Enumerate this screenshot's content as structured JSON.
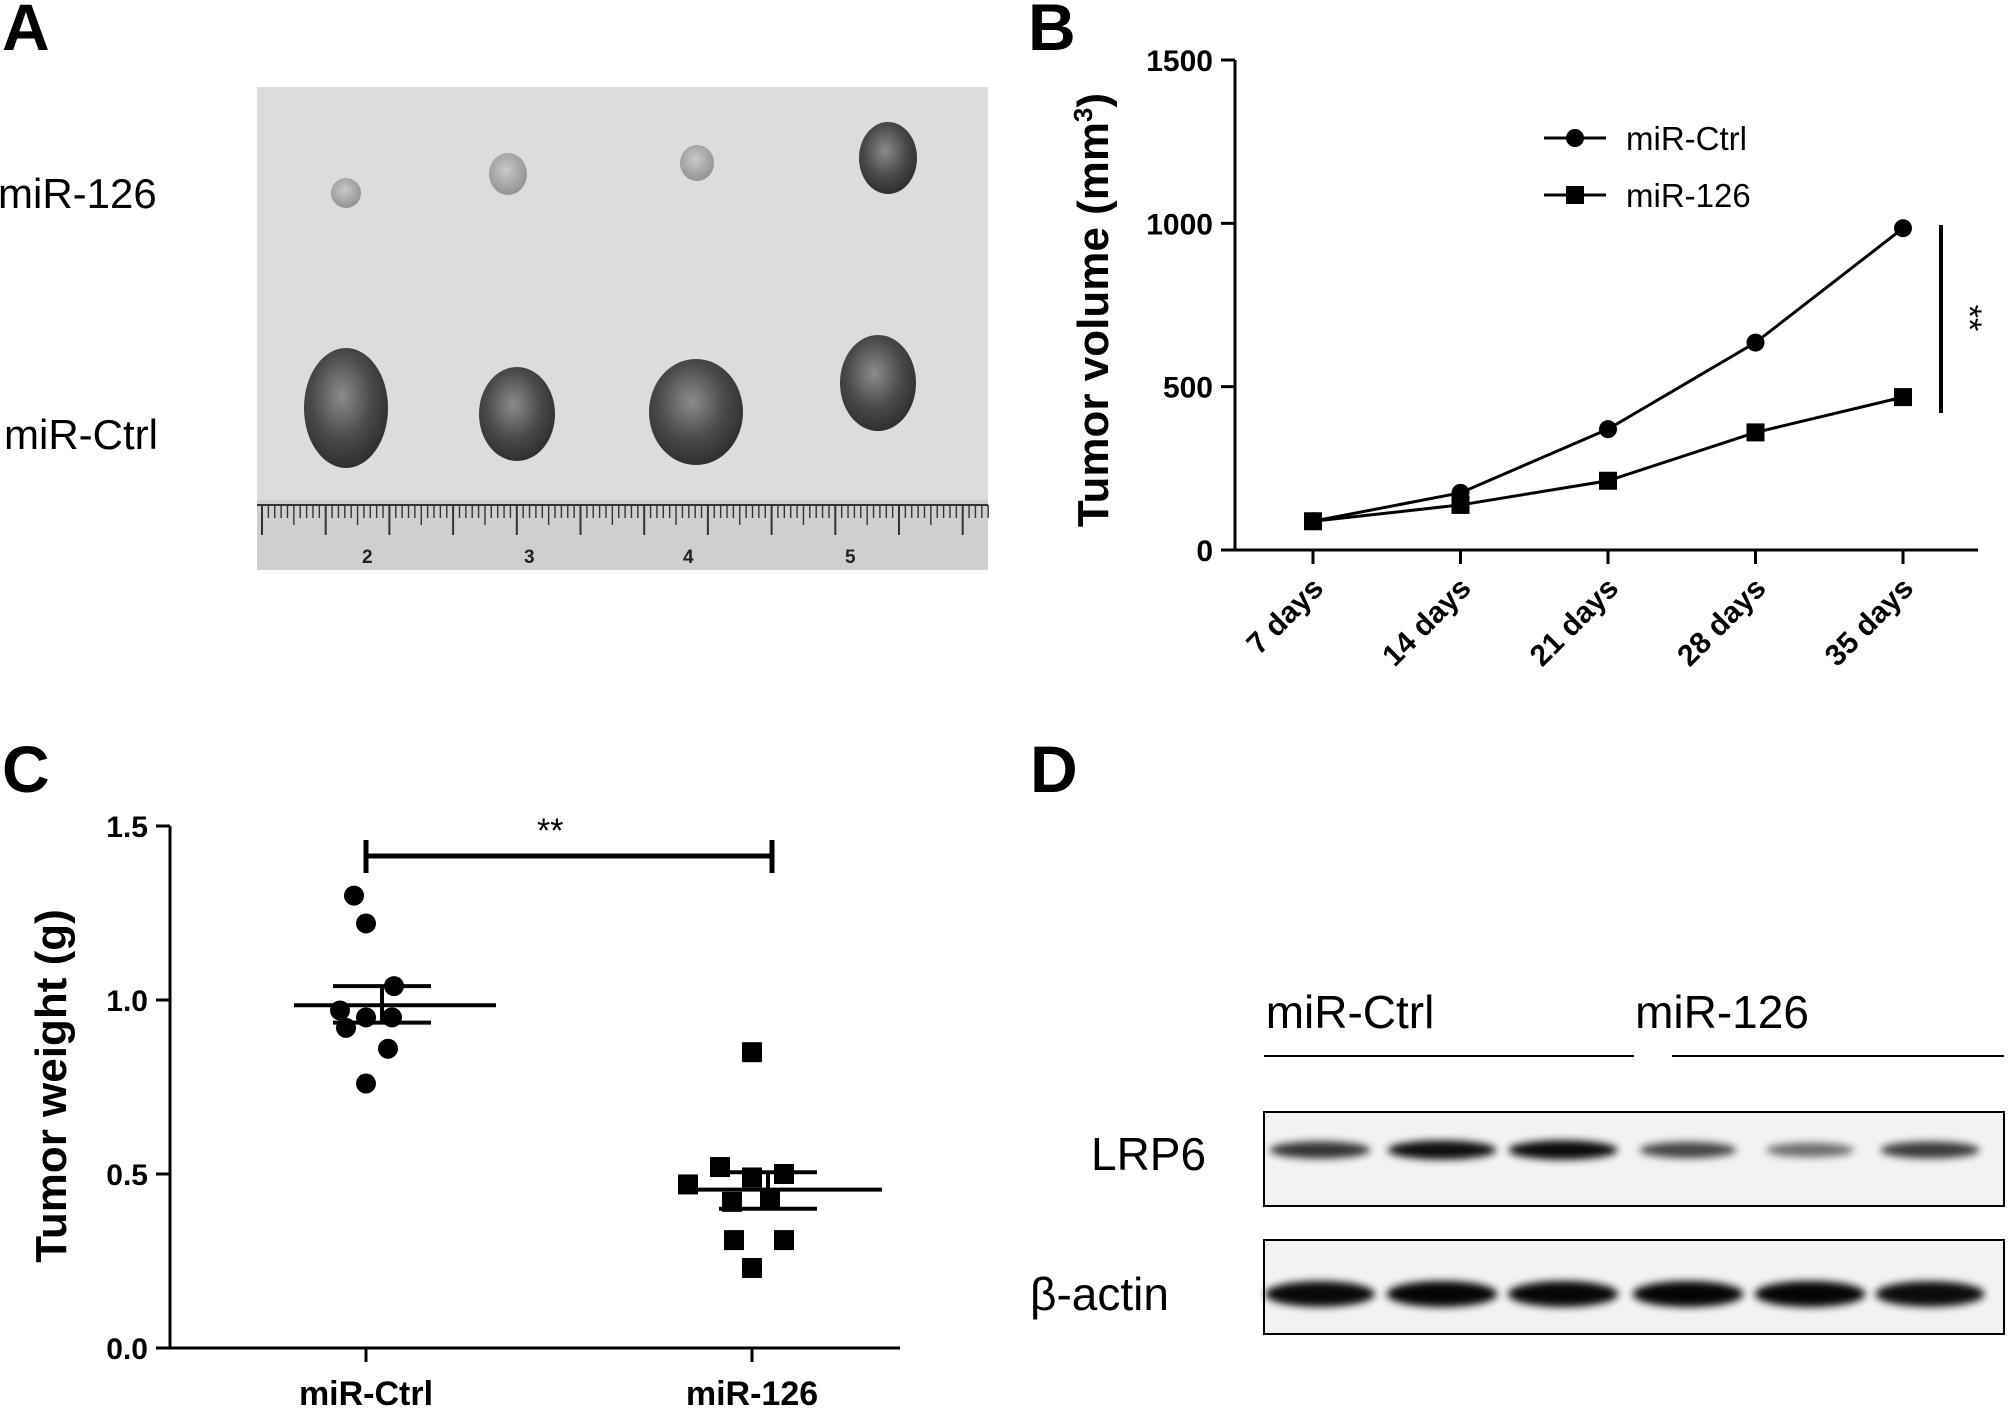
{
  "panels": {
    "a": {
      "letter": "A",
      "row_labels": [
        "miR-126",
        "miR-Ctrl"
      ],
      "ruler_numbers": [
        "2",
        "3",
        "4",
        "5"
      ]
    },
    "b": {
      "letter": "B"
    },
    "c": {
      "letter": "C"
    },
    "d": {
      "letter": "D",
      "groups": [
        "miR-Ctrl",
        "miR-126"
      ],
      "rows": [
        {
          "label": "LRP6",
          "band_intensity": [
            0.72,
            0.92,
            0.94,
            0.62,
            0.4,
            0.68
          ]
        },
        {
          "label": "β-actin",
          "band_intensity": [
            0.95,
            0.97,
            0.96,
            0.97,
            0.97,
            0.93
          ]
        }
      ]
    }
  },
  "chart_data": [
    {
      "type": "line",
      "panel": "B",
      "categories": [
        "7 days",
        "14 days",
        "21 days",
        "28 days",
        "35 days"
      ],
      "series": [
        {
          "name": "miR-Ctrl",
          "marker": "circle",
          "values": [
            88,
            175,
            370,
            635,
            985
          ]
        },
        {
          "name": "miR-126",
          "marker": "square",
          "values": [
            88,
            138,
            212,
            360,
            468
          ]
        }
      ],
      "ylabel_main": "Tumor volume (mm",
      "ylabel_sup": "3",
      "ylabel_close": ")",
      "ylim": [
        0,
        1500
      ],
      "yticks": [
        "0",
        "500",
        "1000",
        "1500"
      ],
      "significance": "**",
      "legend": "top-center"
    },
    {
      "type": "scatter",
      "panel": "C",
      "categories": [
        "miR-Ctrl",
        "miR-126"
      ],
      "ylabel": "Tumor weight (g)",
      "ylim": [
        0.0,
        1.5
      ],
      "yticks": [
        "0.0",
        "0.5",
        "1.0",
        "1.5"
      ],
      "series": [
        {
          "name": "miR-Ctrl",
          "marker": "circle",
          "values": [
            1.3,
            1.22,
            1.04,
            0.97,
            0.95,
            0.95,
            0.92,
            0.86,
            0.76
          ],
          "mean": 0.985,
          "sem_low": 0.935,
          "sem_high": 1.04
        },
        {
          "name": "miR-126",
          "marker": "square",
          "values": [
            0.85,
            0.52,
            0.5,
            0.49,
            0.47,
            0.43,
            0.42,
            0.31,
            0.31,
            0.23
          ],
          "mean": 0.455,
          "sem_low": 0.4,
          "sem_high": 0.505
        }
      ],
      "significance": "**"
    }
  ]
}
